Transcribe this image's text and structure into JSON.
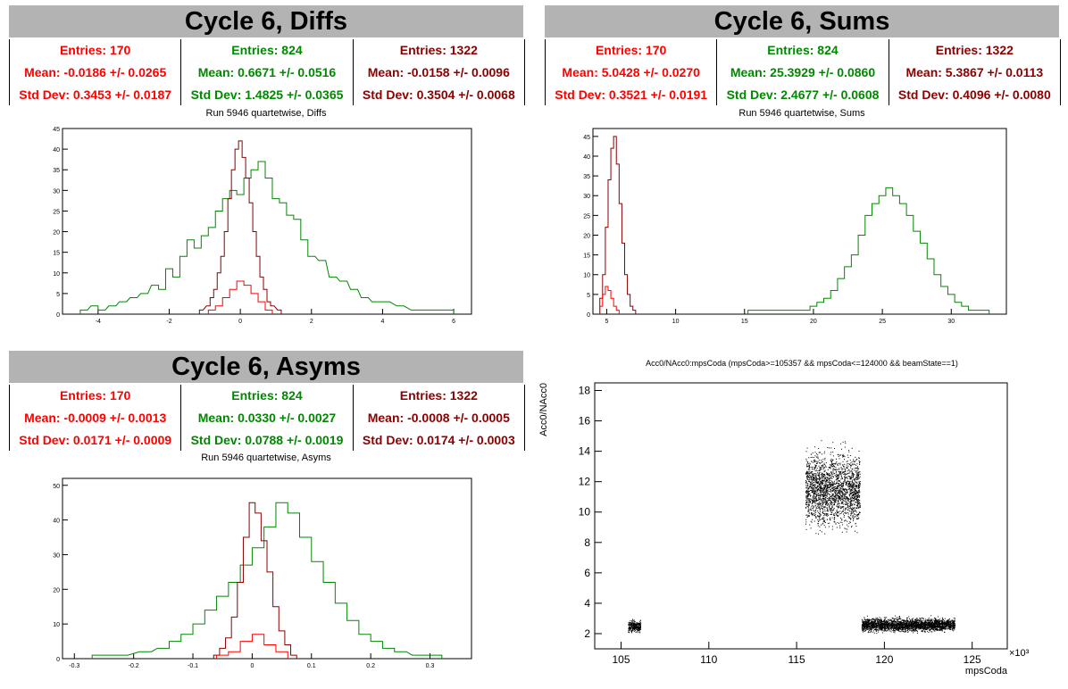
{
  "colors": {
    "red": "#ff0000",
    "green": "#008800",
    "darkred": "#8b0000",
    "header_bg": "#b3b3b3"
  },
  "panels": {
    "diffs": {
      "header": "Cycle 6, Diffs",
      "subtitle": "Run 5946 quartetwise, Diffs",
      "stats": [
        {
          "entries": "Entries: 170",
          "mean": "Mean: -0.0186 +/- 0.0265",
          "std": "Std Dev: 0.3453 +/- 0.0187"
        },
        {
          "entries": "Entries: 824",
          "mean": "Mean: 0.6671 +/- 0.0516",
          "std": "Std Dev: 1.4825 +/- 0.0365"
        },
        {
          "entries": "Entries: 1322",
          "mean": "Mean: -0.0158 +/- 0.0096",
          "std": "Std Dev: 0.3504 +/- 0.0068"
        }
      ]
    },
    "sums": {
      "header": "Cycle 6, Sums",
      "subtitle": "Run 5946 quartetwise, Sums",
      "stats": [
        {
          "entries": "Entries: 170",
          "mean": "Mean: 5.0428 +/- 0.0270",
          "std": "Std Dev: 0.3521 +/- 0.0191"
        },
        {
          "entries": "Entries: 824",
          "mean": "Mean: 25.3929 +/- 0.0860",
          "std": "Std Dev: 2.4677 +/- 0.0608"
        },
        {
          "entries": "Entries: 1322",
          "mean": "Mean: 5.3867 +/- 0.0113",
          "std": "Std Dev: 0.4096 +/- 0.0080"
        }
      ]
    },
    "asyms": {
      "header": "Cycle 6, Asyms",
      "subtitle": "Run 5946 quartetwise, Asyms",
      "stats": [
        {
          "entries": "Entries: 170",
          "mean": "Mean: -0.0009 +/- 0.0013",
          "std": "Std Dev: 0.0171 +/- 0.0009"
        },
        {
          "entries": "Entries: 824",
          "mean": "Mean: 0.0330 +/- 0.0027",
          "std": "Std Dev: 0.0788 +/- 0.0019"
        },
        {
          "entries": "Entries: 1322",
          "mean": "Mean: -0.0008 +/- 0.0005",
          "std": "Std Dev: 0.0174 +/- 0.0003"
        }
      ]
    },
    "scatter": {
      "title": "Acc0/NAcc0:mpsCoda (mpsCoda>=105357 && mpsCoda<=124000 && beamState==1)"
    }
  },
  "chart_data": [
    {
      "type": "histogram",
      "name": "diffs",
      "xlim": [
        -5,
        6.5
      ],
      "ylim": [
        0,
        45
      ],
      "xticks": [
        -4,
        -2,
        0,
        2,
        4,
        6
      ],
      "yticks": [
        0,
        5,
        10,
        15,
        20,
        25,
        30,
        35,
        40,
        45
      ],
      "series": [
        {
          "color": "green",
          "values": [
            [
              -4.4,
              1
            ],
            [
              -4.1,
              2
            ],
            [
              -3.9,
              1
            ],
            [
              -3.6,
              2
            ],
            [
              -3.3,
              3
            ],
            [
              -3.0,
              4
            ],
            [
              -2.7,
              5
            ],
            [
              -2.4,
              7
            ],
            [
              -2.2,
              6
            ],
            [
              -2.0,
              11
            ],
            [
              -1.8,
              9
            ],
            [
              -1.6,
              14
            ],
            [
              -1.4,
              18
            ],
            [
              -1.2,
              16
            ],
            [
              -1.0,
              19
            ],
            [
              -0.8,
              21
            ],
            [
              -0.6,
              25
            ],
            [
              -0.4,
              28
            ],
            [
              -0.2,
              30
            ],
            [
              0.0,
              29
            ],
            [
              0.2,
              33
            ],
            [
              0.4,
              35
            ],
            [
              0.6,
              37
            ],
            [
              0.8,
              33
            ],
            [
              1.0,
              28
            ],
            [
              1.2,
              27
            ],
            [
              1.4,
              24
            ],
            [
              1.6,
              23
            ],
            [
              1.8,
              18
            ],
            [
              2.0,
              14
            ],
            [
              2.3,
              13
            ],
            [
              2.6,
              9
            ],
            [
              2.9,
              8
            ],
            [
              3.2,
              6
            ],
            [
              3.5,
              4
            ],
            [
              3.8,
              3
            ],
            [
              4.1,
              3
            ],
            [
              4.5,
              2
            ],
            [
              4.9,
              1
            ],
            [
              5.3,
              1
            ],
            [
              5.9,
              1
            ]
          ]
        },
        {
          "color": "darkred",
          "values": [
            [
              -1.1,
              1
            ],
            [
              -0.9,
              2
            ],
            [
              -0.8,
              4
            ],
            [
              -0.7,
              6
            ],
            [
              -0.6,
              10
            ],
            [
              -0.5,
              14
            ],
            [
              -0.4,
              20
            ],
            [
              -0.3,
              28
            ],
            [
              -0.2,
              35
            ],
            [
              -0.1,
              40
            ],
            [
              0.0,
              42
            ],
            [
              0.1,
              38
            ],
            [
              0.2,
              33
            ],
            [
              0.3,
              27
            ],
            [
              0.4,
              20
            ],
            [
              0.5,
              14
            ],
            [
              0.6,
              9
            ],
            [
              0.7,
              6
            ],
            [
              0.8,
              3
            ],
            [
              0.9,
              2
            ],
            [
              1.1,
              1
            ]
          ]
        },
        {
          "color": "red",
          "values": [
            [
              -0.8,
              1
            ],
            [
              -0.6,
              2
            ],
            [
              -0.4,
              4
            ],
            [
              -0.2,
              6
            ],
            [
              0.0,
              8
            ],
            [
              0.2,
              7
            ],
            [
              0.4,
              5
            ],
            [
              0.6,
              3
            ],
            [
              0.8,
              1
            ]
          ]
        }
      ]
    },
    {
      "type": "histogram",
      "name": "sums",
      "xlim": [
        4,
        34
      ],
      "ylim": [
        0,
        47
      ],
      "xticks": [
        5,
        10,
        15,
        20,
        25,
        30
      ],
      "yticks": [
        0,
        5,
        10,
        15,
        20,
        25,
        30,
        35,
        40,
        45
      ],
      "series": [
        {
          "color": "green",
          "values": [
            [
              15.5,
              1
            ],
            [
              17.5,
              1
            ],
            [
              19.5,
              1
            ],
            [
              20.0,
              2
            ],
            [
              20.5,
              3
            ],
            [
              21.0,
              4
            ],
            [
              21.5,
              6
            ],
            [
              22.0,
              9
            ],
            [
              22.5,
              12
            ],
            [
              23.0,
              15
            ],
            [
              23.5,
              20
            ],
            [
              24.0,
              25
            ],
            [
              24.5,
              28
            ],
            [
              25.0,
              30
            ],
            [
              25.5,
              32
            ],
            [
              26.0,
              30
            ],
            [
              26.5,
              28
            ],
            [
              27.0,
              25
            ],
            [
              27.5,
              21
            ],
            [
              28.0,
              18
            ],
            [
              28.5,
              14
            ],
            [
              29.0,
              10
            ],
            [
              29.5,
              7
            ],
            [
              30.0,
              5
            ],
            [
              30.5,
              3
            ],
            [
              31.0,
              2
            ],
            [
              31.5,
              1
            ],
            [
              32.5,
              1
            ]
          ]
        },
        {
          "color": "darkred",
          "values": [
            [
              4.6,
              4
            ],
            [
              4.8,
              10
            ],
            [
              5.0,
              22
            ],
            [
              5.2,
              34
            ],
            [
              5.4,
              42
            ],
            [
              5.6,
              45
            ],
            [
              5.8,
              38
            ],
            [
              6.0,
              28
            ],
            [
              6.2,
              18
            ],
            [
              6.4,
              10
            ],
            [
              6.6,
              5
            ],
            [
              6.8,
              2
            ],
            [
              7.0,
              1
            ]
          ]
        },
        {
          "color": "red",
          "values": [
            [
              4.6,
              2
            ],
            [
              4.8,
              5
            ],
            [
              5.0,
              7
            ],
            [
              5.2,
              6
            ],
            [
              5.4,
              4
            ],
            [
              5.6,
              2
            ],
            [
              5.8,
              1
            ]
          ]
        }
      ]
    },
    {
      "type": "histogram",
      "name": "asyms",
      "xlim": [
        -0.32,
        0.37
      ],
      "ylim": [
        0,
        52
      ],
      "xticks": [
        -0.3,
        -0.2,
        -0.1,
        0,
        0.1,
        0.2,
        0.3
      ],
      "yticks": [
        0,
        10,
        20,
        30,
        40,
        50
      ],
      "series": [
        {
          "color": "green",
          "values": [
            [
              -0.26,
              1
            ],
            [
              -0.22,
              1
            ],
            [
              -0.18,
              2
            ],
            [
              -0.15,
              3
            ],
            [
              -0.13,
              5
            ],
            [
              -0.11,
              7
            ],
            [
              -0.09,
              10
            ],
            [
              -0.07,
              14
            ],
            [
              -0.05,
              18
            ],
            [
              -0.03,
              22
            ],
            [
              -0.01,
              27
            ],
            [
              0.01,
              32
            ],
            [
              0.03,
              38
            ],
            [
              0.05,
              45
            ],
            [
              0.07,
              42
            ],
            [
              0.09,
              35
            ],
            [
              0.11,
              28
            ],
            [
              0.13,
              22
            ],
            [
              0.15,
              16
            ],
            [
              0.17,
              11
            ],
            [
              0.19,
              7
            ],
            [
              0.21,
              5
            ],
            [
              0.23,
              3
            ],
            [
              0.25,
              2
            ],
            [
              0.28,
              1
            ],
            [
              0.31,
              1
            ]
          ]
        },
        {
          "color": "darkred",
          "values": [
            [
              -0.06,
              1
            ],
            [
              -0.05,
              3
            ],
            [
              -0.04,
              6
            ],
            [
              -0.03,
              12
            ],
            [
              -0.02,
              22
            ],
            [
              -0.01,
              35
            ],
            [
              0.0,
              45
            ],
            [
              0.01,
              42
            ],
            [
              0.02,
              34
            ],
            [
              0.03,
              25
            ],
            [
              0.04,
              15
            ],
            [
              0.05,
              8
            ],
            [
              0.06,
              4
            ],
            [
              0.07,
              1
            ]
          ]
        },
        {
          "color": "red",
          "values": [
            [
              -0.05,
              1
            ],
            [
              -0.03,
              2
            ],
            [
              -0.01,
              5
            ],
            [
              0.01,
              7
            ],
            [
              0.03,
              4
            ],
            [
              0.05,
              2
            ]
          ]
        }
      ]
    },
    {
      "type": "scatter",
      "name": "acc0-vs-mpscoda",
      "xlabel": "mpsCoda",
      "ylabel": "Acc0/NAcc0",
      "x_multiplier_label": "×10³",
      "xlim": [
        103.5,
        127
      ],
      "ylim": [
        1,
        18.5
      ],
      "xticks": [
        105,
        110,
        115,
        120,
        125
      ],
      "yticks": [
        2,
        4,
        6,
        8,
        10,
        12,
        14,
        16,
        18
      ],
      "clusters": [
        {
          "x_range": [
            105.4,
            106.1
          ],
          "y_center": 2.5,
          "y_spread": 0.35,
          "n": 300
        },
        {
          "x_range": [
            115.5,
            118.6
          ],
          "y_center": 11.5,
          "y_spread": 2.2,
          "n": 2200
        },
        {
          "x_range": [
            118.7,
            124.0
          ],
          "y_center": 2.6,
          "y_spread": 0.4,
          "n": 2500
        }
      ]
    }
  ]
}
